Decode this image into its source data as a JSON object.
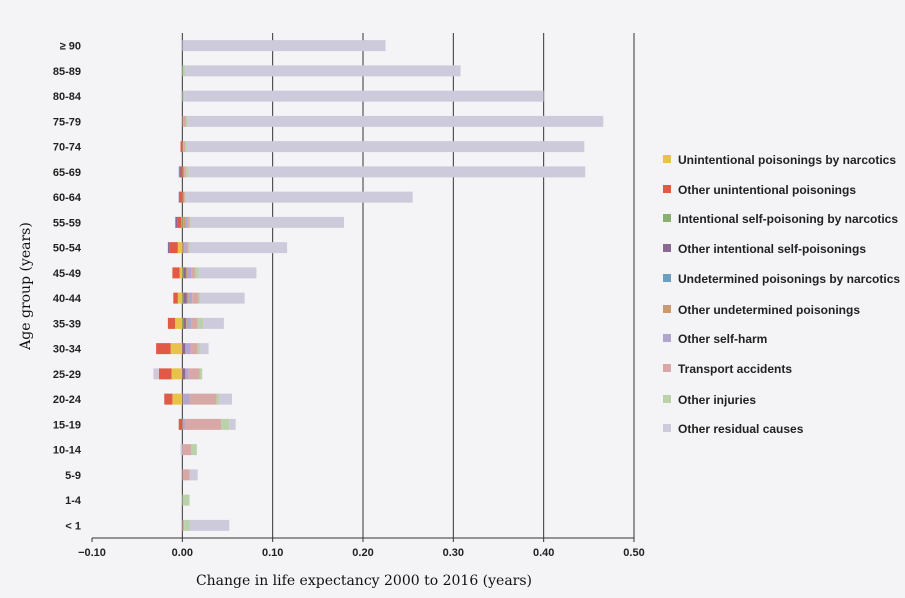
{
  "chart_data": {
    "type": "bar",
    "stacked": true,
    "orientation": "horizontal",
    "xlabel": "Change in life expectancy 2000 to 2016 (years)",
    "ylabel": "Age group (years)",
    "xlim": [
      -0.1,
      0.5
    ],
    "xticks": [
      "−0.10",
      "0.00",
      "0.10",
      "0.20",
      "0.30",
      "0.40",
      "0.50"
    ],
    "xtick_values": [
      -0.1,
      0,
      0.1,
      0.2,
      0.3,
      0.4,
      0.5
    ],
    "grid": "vertical",
    "legend_position": "right",
    "categories": [
      "≥ 90",
      "85-89",
      "80-84",
      "75-79",
      "70-74",
      "65-69",
      "60-64",
      "55-59",
      "50-54",
      "45-49",
      "40-44",
      "35-39",
      "30-34",
      "25-29",
      "20-24",
      "15-19",
      "10-14",
      "5-9",
      "1-4",
      "< 1"
    ],
    "series": [
      {
        "name": "Unintentional poisonings by narcotics",
        "color": "#e8c24a",
        "values": [
          0,
          0,
          0,
          0,
          0,
          0,
          0,
          -0.001,
          -0.005,
          -0.003,
          -0.005,
          -0.008,
          -0.013,
          -0.012,
          -0.011,
          0,
          0,
          0,
          0,
          0
        ]
      },
      {
        "name": "Other unintentional poisonings",
        "color": "#e05a45",
        "values": [
          0,
          0,
          0,
          0,
          -0.002,
          -0.002,
          -0.003,
          -0.004,
          -0.009,
          -0.008,
          -0.005,
          -0.008,
          -0.016,
          -0.014,
          -0.009,
          -0.004,
          0,
          0,
          0,
          0
        ]
      },
      {
        "name": "Intentional self-poisoning by narcotics",
        "color": "#8aaf70",
        "values": [
          0,
          0,
          0,
          0,
          0,
          0,
          0,
          0.001,
          0,
          0.001,
          0.001,
          0.001,
          0,
          0,
          0,
          0,
          0,
          0,
          0,
          0
        ]
      },
      {
        "name": "Other intentional self-poisonings",
        "color": "#8a6a92",
        "values": [
          0,
          0,
          0,
          0,
          0,
          -0.001,
          -0.001,
          -0.002,
          -0.002,
          0.003,
          0.004,
          0.003,
          0.003,
          0.003,
          0.001,
          0,
          0,
          0,
          0,
          0
        ]
      },
      {
        "name": "Undetermined poisonings by narcotics",
        "color": "#6b9fbf",
        "values": [
          0,
          0,
          0,
          0,
          0,
          -0.001,
          0,
          -0.001,
          0,
          0,
          0,
          0,
          0,
          0,
          0,
          0,
          0,
          0,
          0,
          0
        ]
      },
      {
        "name": "Other undetermined poisonings",
        "color": "#c99a70",
        "values": [
          0,
          0,
          0,
          0.001,
          0.001,
          0.002,
          0.002,
          0.002,
          0.002,
          0.002,
          0.002,
          0.001,
          0.001,
          0.001,
          0,
          0,
          0,
          0,
          0,
          0
        ]
      },
      {
        "name": "Other self-harm",
        "color": "#b1a7cc",
        "values": [
          0,
          0,
          0,
          0,
          0,
          0,
          0,
          0.003,
          0.003,
          0.004,
          0.004,
          0.005,
          0.005,
          0.003,
          0.007,
          0.003,
          0,
          0,
          0,
          0
        ]
      },
      {
        "name": "Transport accidents",
        "color": "#d7a8a6",
        "values": [
          0,
          0,
          0,
          0.003,
          0.002,
          0.002,
          0.001,
          0.002,
          0.002,
          0.004,
          0.007,
          0.007,
          0.008,
          0.012,
          0.03,
          0.04,
          0.01,
          0.008,
          0,
          0.002
        ]
      },
      {
        "name": "Other injuries",
        "color": "#b9d2a9",
        "values": [
          0,
          0.003,
          0.002,
          0.002,
          0.002,
          0.003,
          0.001,
          0.001,
          0.001,
          0.004,
          0.002,
          0.006,
          0.003,
          0.003,
          0.003,
          0.009,
          0.006,
          0,
          0.008,
          0.006
        ]
      },
      {
        "name": "Other residual causes",
        "color": "#cdcbdb",
        "values": [
          0.225,
          0.305,
          0.398,
          0.46,
          0.44,
          0.439,
          0.251,
          0.17,
          0.108,
          0.064,
          0.049,
          0.023,
          0.009,
          -0.006,
          0.014,
          0.007,
          -0.002,
          0.009,
          0,
          0.044
        ]
      }
    ]
  }
}
